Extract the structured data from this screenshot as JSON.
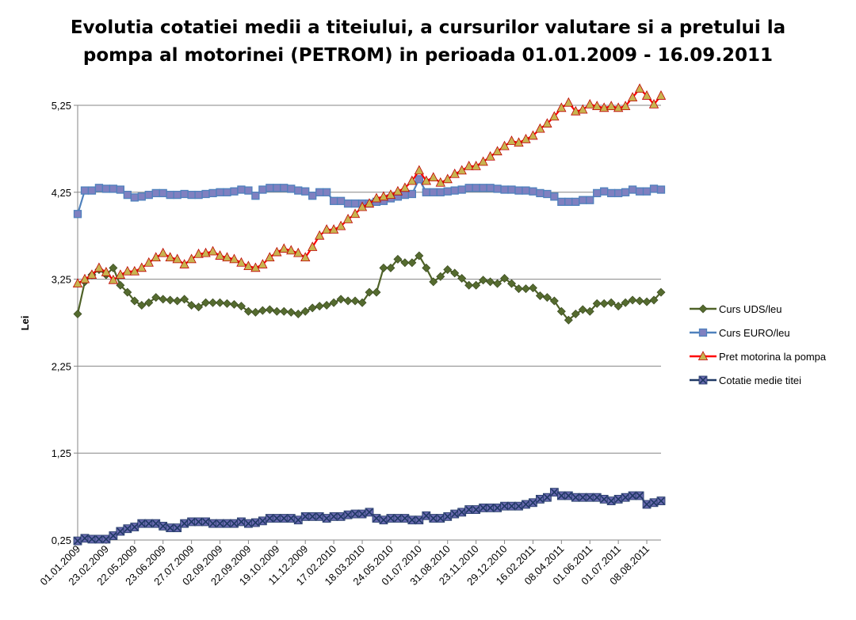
{
  "chart_data": {
    "type": "line",
    "title_lines": [
      "Evolutia cotatiei medii a titeiului, a cursurilor valutare si a pretului la",
      "pompa al motorinei (PETROM) in perioada 01.01.2009 - 16.09.2011"
    ],
    "ylabel": "Lei",
    "xlabel": "",
    "ylim": [
      0.25,
      5.5
    ],
    "y_ticks": [
      "0,25",
      "1,25",
      "2,25",
      "3,25",
      "4,25",
      "5,25"
    ],
    "y_tick_values": [
      0.25,
      1.25,
      2.25,
      3.25,
      4.25,
      5.25
    ],
    "x_tick_labels": [
      "01.01.2009",
      "23.02.2009",
      "22.05.2009",
      "23.06.2009",
      "27.07.2009",
      "02.09.2009",
      "22.09.2009",
      "19.10.2009",
      "11.12.2009",
      "17.02.2010",
      "18.03.2010",
      "24.05.2010",
      "01.07.2010",
      "31.08.2010",
      "23.11.2010",
      "29.12.2010",
      "16.02.2011",
      "08.04.2011",
      "01.06.2011",
      "01.07.2011",
      "08.08.2011"
    ],
    "x_tick_index": [
      0,
      4,
      8,
      12,
      16,
      20,
      24,
      28,
      32,
      36,
      40,
      44,
      48,
      52,
      56,
      60,
      64,
      68,
      72,
      76,
      80
    ],
    "n_points": 83,
    "grid": true,
    "legend_position": "right",
    "series": [
      {
        "name": "Curs UDS/leu",
        "color": "#556b2f",
        "line_color": "#4f6228",
        "marker": "diamond",
        "values": [
          2.85,
          3.22,
          3.3,
          3.36,
          3.3,
          3.38,
          3.18,
          3.1,
          3.0,
          2.95,
          2.98,
          3.04,
          3.02,
          3.01,
          3.0,
          3.02,
          2.95,
          2.93,
          2.98,
          2.98,
          2.98,
          2.97,
          2.96,
          2.94,
          2.88,
          2.87,
          2.89,
          2.9,
          2.88,
          2.88,
          2.87,
          2.85,
          2.88,
          2.92,
          2.94,
          2.95,
          2.98,
          3.02,
          3.0,
          3.0,
          2.98,
          3.1,
          3.1,
          3.38,
          3.38,
          3.48,
          3.44,
          3.44,
          3.52,
          3.38,
          3.22,
          3.28,
          3.36,
          3.32,
          3.26,
          3.18,
          3.18,
          3.24,
          3.22,
          3.2,
          3.26,
          3.2,
          3.14,
          3.14,
          3.15,
          3.06,
          3.04,
          3.0,
          2.88,
          2.78,
          2.85,
          2.9,
          2.88,
          2.97,
          2.97,
          2.98,
          2.94,
          2.98,
          3.01,
          3.0,
          2.99,
          3.01,
          3.1
        ]
      },
      {
        "name": "Curs EURO/leu",
        "color": "#8080c0",
        "line_color": "#4f81bd",
        "marker": "square",
        "values": [
          4.0,
          4.27,
          4.27,
          4.3,
          4.29,
          4.29,
          4.28,
          4.22,
          4.19,
          4.2,
          4.22,
          4.24,
          4.24,
          4.22,
          4.22,
          4.23,
          4.22,
          4.22,
          4.23,
          4.24,
          4.25,
          4.25,
          4.26,
          4.28,
          4.27,
          4.21,
          4.28,
          4.3,
          4.3,
          4.3,
          4.29,
          4.27,
          4.26,
          4.21,
          4.25,
          4.25,
          4.15,
          4.15,
          4.12,
          4.12,
          4.12,
          4.12,
          4.14,
          4.15,
          4.18,
          4.2,
          4.22,
          4.23,
          4.4,
          4.25,
          4.25,
          4.25,
          4.26,
          4.27,
          4.28,
          4.3,
          4.3,
          4.3,
          4.3,
          4.29,
          4.28,
          4.28,
          4.27,
          4.27,
          4.26,
          4.24,
          4.23,
          4.2,
          4.14,
          4.14,
          4.14,
          4.16,
          4.16,
          4.24,
          4.26,
          4.24,
          4.24,
          4.25,
          4.28,
          4.26,
          4.26,
          4.29,
          4.28
        ]
      },
      {
        "name": "Pret motorina la pompa",
        "color": "#c8b450",
        "line_color": "#ff0000",
        "marker": "triangle",
        "values": [
          3.2,
          3.25,
          3.3,
          3.38,
          3.33,
          3.24,
          3.3,
          3.34,
          3.34,
          3.38,
          3.44,
          3.5,
          3.55,
          3.5,
          3.48,
          3.42,
          3.48,
          3.54,
          3.55,
          3.57,
          3.52,
          3.5,
          3.48,
          3.44,
          3.4,
          3.38,
          3.42,
          3.5,
          3.56,
          3.6,
          3.58,
          3.55,
          3.5,
          3.62,
          3.75,
          3.82,
          3.82,
          3.86,
          3.94,
          4.0,
          4.08,
          4.12,
          4.18,
          4.2,
          4.22,
          4.26,
          4.3,
          4.38,
          4.5,
          4.38,
          4.42,
          4.36,
          4.4,
          4.46,
          4.5,
          4.55,
          4.55,
          4.6,
          4.66,
          4.72,
          4.78,
          4.84,
          4.82,
          4.86,
          4.9,
          4.98,
          5.04,
          5.12,
          5.22,
          5.28,
          5.18,
          5.2,
          5.26,
          5.24,
          5.22,
          5.24,
          5.22,
          5.24,
          5.34,
          5.44,
          5.36,
          5.26,
          5.36
        ]
      },
      {
        "name": "Cotatie medie titei",
        "color": "#6a6ab0",
        "line_color": "#1f3864",
        "marker": "x",
        "values": [
          0.24,
          0.27,
          0.26,
          0.26,
          0.26,
          0.3,
          0.35,
          0.38,
          0.4,
          0.44,
          0.44,
          0.44,
          0.41,
          0.39,
          0.39,
          0.44,
          0.46,
          0.46,
          0.46,
          0.44,
          0.44,
          0.44,
          0.44,
          0.46,
          0.44,
          0.45,
          0.47,
          0.5,
          0.5,
          0.5,
          0.5,
          0.48,
          0.52,
          0.52,
          0.52,
          0.5,
          0.52,
          0.52,
          0.54,
          0.55,
          0.55,
          0.57,
          0.5,
          0.48,
          0.5,
          0.5,
          0.5,
          0.48,
          0.48,
          0.53,
          0.5,
          0.5,
          0.52,
          0.55,
          0.57,
          0.6,
          0.6,
          0.62,
          0.62,
          0.62,
          0.64,
          0.64,
          0.64,
          0.66,
          0.68,
          0.72,
          0.74,
          0.8,
          0.76,
          0.76,
          0.74,
          0.74,
          0.74,
          0.74,
          0.72,
          0.7,
          0.72,
          0.74,
          0.76,
          0.76,
          0.66,
          0.68,
          0.7
        ]
      }
    ]
  }
}
